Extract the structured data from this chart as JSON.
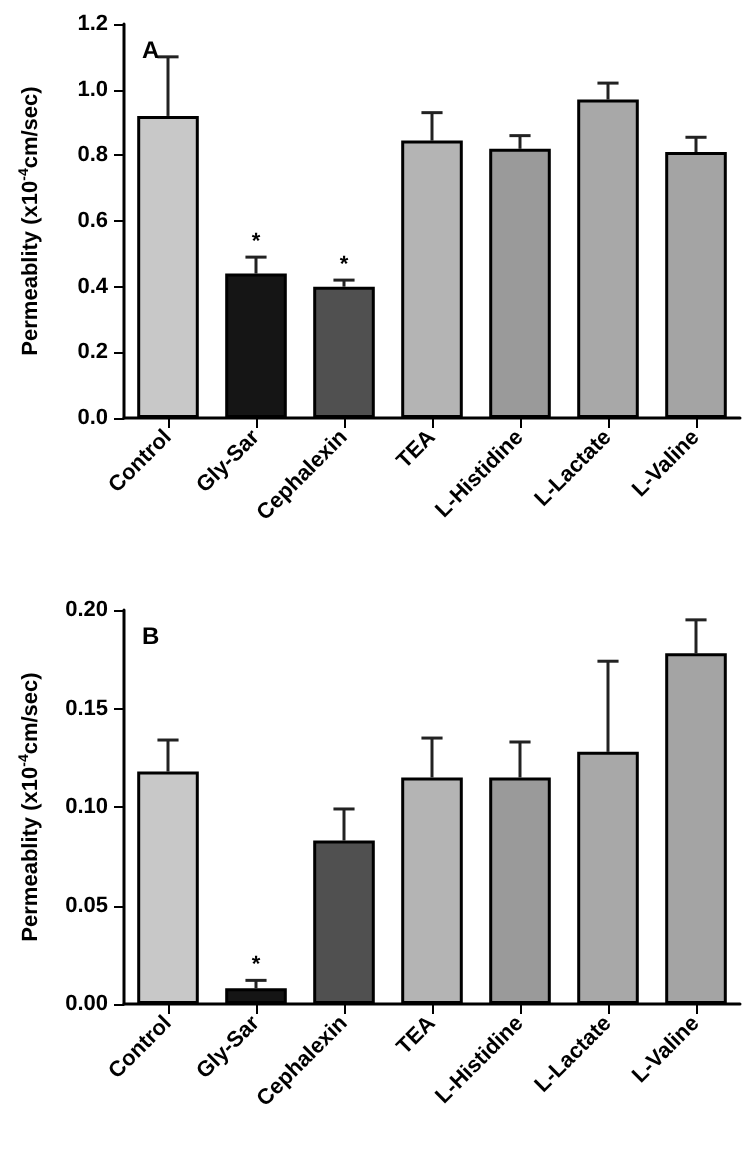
{
  "chart_data": [
    {
      "type": "bar",
      "title": "A",
      "ylabel": "Permeablity (x10$^{-4}$cm/sec)",
      "categories": [
        "Control",
        "Gly-Sar",
        "Cephalexin",
        "TEA",
        "L-Histidine",
        "L-Lactate",
        "L-Valine"
      ],
      "values": [
        0.92,
        0.44,
        0.4,
        0.845,
        0.82,
        0.97,
        0.81
      ],
      "errors": [
        [
          0.92,
          1.1
        ],
        [
          0.44,
          0.49
        ],
        [
          0.4,
          0.42
        ],
        [
          0.845,
          0.93
        ],
        [
          0.82,
          0.86
        ],
        [
          0.97,
          1.02
        ],
        [
          0.81,
          0.855
        ]
      ],
      "colors": [
        "#c8c8c8",
        "#151515",
        "#505050",
        "#b4b4b4",
        "#9a9a9a",
        "#a8a8a8",
        "#a4a4a4"
      ],
      "ylim": [
        0,
        1.2
      ],
      "yticks": [
        {
          "value": 0,
          "label": "0.0"
        },
        {
          "value": 0.2,
          "label": "0.2"
        },
        {
          "value": 0.4,
          "label": "0.4"
        },
        {
          "value": 0.6,
          "label": "0.6"
        },
        {
          "value": 0.8,
          "label": "0.8"
        },
        {
          "value": 1.0,
          "label": "1.0"
        },
        {
          "value": 1.2,
          "label": "1.2"
        }
      ],
      "annotations": [
        {
          "text": "*",
          "x": "Gly-Sar",
          "y": 0.49
        },
        {
          "text": "*",
          "x": "Cephalexin",
          "y": 0.42
        }
      ]
    },
    {
      "type": "bar",
      "title": "B",
      "ylabel": "Permeablity (x10$^{-4}$cm/sec)",
      "categories": [
        "Control",
        "Gly-Sar",
        "Cephalexin",
        "TEA",
        "L-Histidine",
        "L-Lactate",
        "L-Valine"
      ],
      "values": [
        0.118,
        0.008,
        0.083,
        0.115,
        0.115,
        0.128,
        0.178
      ],
      "errors": [
        [
          0.118,
          0.134
        ],
        [
          0.008,
          0.012
        ],
        [
          0.083,
          0.099
        ],
        [
          0.115,
          0.135
        ],
        [
          0.115,
          0.133
        ],
        [
          0.128,
          0.174
        ],
        [
          0.178,
          0.195
        ]
      ],
      "colors": [
        "#c8c8c8",
        "#151515",
        "#505050",
        "#b4b4b4",
        "#9a9a9a",
        "#a8a8a8",
        "#a4a4a4"
      ],
      "ylim": [
        0,
        0.2
      ],
      "yticks": [
        {
          "value": 0,
          "label": "0.00"
        },
        {
          "value": 0.05,
          "label": "0.05"
        },
        {
          "value": 0.1,
          "label": "0.10"
        },
        {
          "value": 0.15,
          "label": "0.15"
        },
        {
          "value": 0.2,
          "label": "0.20"
        }
      ],
      "annotations": [
        {
          "text": "*",
          "x": "Gly-Sar",
          "y": 0.012
        }
      ]
    }
  ]
}
